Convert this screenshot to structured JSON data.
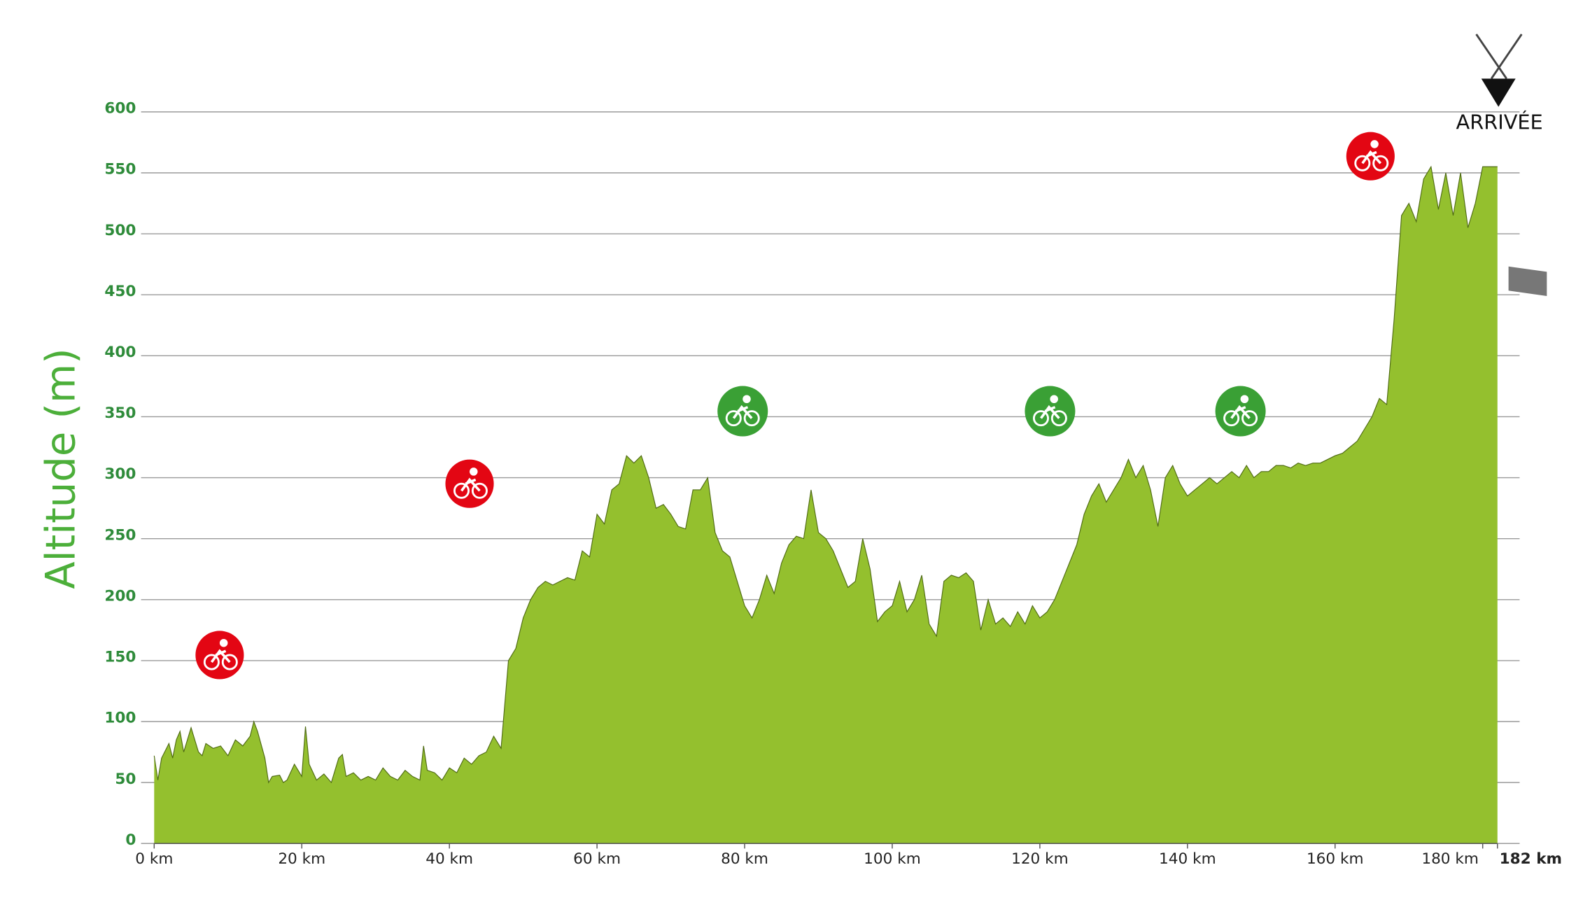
{
  "chart_data": {
    "type": "area",
    "ylabel": "Altitude (m)",
    "annotation": "ARRIVÉE",
    "color": "#94c02e",
    "line_color": "#4f6b14",
    "grid": true,
    "xlim": [
      0,
      182
    ],
    "ylim": [
      0,
      600
    ],
    "yticks": [
      0,
      50,
      100,
      150,
      200,
      250,
      300,
      350,
      400,
      450,
      500,
      550,
      600
    ],
    "xticks": [
      {
        "value": 0,
        "label": "0 km"
      },
      {
        "value": 20,
        "label": "20 km"
      },
      {
        "value": 40,
        "label": "40 km"
      },
      {
        "value": 60,
        "label": "60 km"
      },
      {
        "value": 80,
        "label": "80 km"
      },
      {
        "value": 100,
        "label": "100 km"
      },
      {
        "value": 120,
        "label": "120 km"
      },
      {
        "value": 140,
        "label": "140 km"
      },
      {
        "value": 160,
        "label": "160 km"
      },
      {
        "value": 180,
        "label": "180 km"
      },
      {
        "value": 182,
        "label": "182 km"
      }
    ],
    "x": [
      0,
      0.5,
      1,
      2,
      2.5,
      3,
      3.5,
      4,
      5,
      6,
      6.5,
      7,
      8,
      9,
      10,
      11,
      12,
      13,
      13.5,
      14,
      15,
      15.5,
      16,
      17,
      17.5,
      18,
      19,
      20,
      20.5,
      21,
      22,
      23,
      24,
      25,
      25.5,
      26,
      27,
      28,
      29,
      30,
      31,
      32,
      33,
      34,
      35,
      36,
      36.5,
      37,
      38,
      39,
      40,
      41,
      42,
      43,
      44,
      45,
      46,
      47,
      48,
      49,
      50,
      51,
      52,
      53,
      54,
      55,
      56,
      57,
      58,
      59,
      60,
      61,
      62,
      63,
      64,
      65,
      66,
      67,
      68,
      69,
      70,
      71,
      72,
      73,
      74,
      75,
      76,
      77,
      78,
      79,
      80,
      81,
      82,
      83,
      84,
      85,
      86,
      87,
      88,
      89,
      90,
      91,
      92,
      93,
      94,
      95,
      96,
      97,
      98,
      99,
      100,
      101,
      102,
      103,
      104,
      105,
      106,
      107,
      108,
      109,
      110,
      111,
      112,
      113,
      114,
      115,
      116,
      117,
      118,
      119,
      120,
      121,
      122,
      123,
      124,
      125,
      126,
      127,
      128,
      129,
      130,
      131,
      132,
      133,
      134,
      135,
      136,
      137,
      138,
      139,
      140,
      141,
      142,
      143,
      144,
      145,
      146,
      147,
      148,
      149,
      150,
      151,
      152,
      153,
      154,
      155,
      156,
      157,
      158,
      159,
      160,
      161,
      162,
      163,
      164,
      165,
      166,
      167,
      168,
      169,
      170,
      171,
      172,
      173,
      174,
      175,
      176,
      177,
      178,
      179,
      180,
      181,
      182
    ],
    "values": [
      72,
      52,
      70,
      82,
      70,
      85,
      92,
      75,
      95,
      75,
      72,
      82,
      78,
      80,
      72,
      85,
      80,
      88,
      100,
      92,
      70,
      50,
      55,
      56,
      50,
      52,
      65,
      55,
      96,
      65,
      52,
      57,
      50,
      70,
      73,
      55,
      58,
      52,
      55,
      52,
      62,
      55,
      52,
      60,
      55,
      52,
      80,
      60,
      58,
      52,
      62,
      58,
      70,
      65,
      72,
      75,
      88,
      78,
      150,
      160,
      185,
      200,
      210,
      215,
      212,
      215,
      218,
      216,
      240,
      235,
      270,
      262,
      290,
      295,
      318,
      312,
      318,
      300,
      275,
      278,
      270,
      260,
      258,
      290,
      290,
      300,
      255,
      240,
      235,
      215,
      195,
      185,
      200,
      220,
      205,
      230,
      245,
      252,
      250,
      290,
      255,
      250,
      240,
      225,
      210,
      215,
      250,
      225,
      182,
      190,
      195,
      215,
      190,
      200,
      220,
      180,
      170,
      215,
      220,
      218,
      222,
      215,
      175,
      200,
      180,
      185,
      178,
      190,
      180,
      195,
      185,
      190,
      200,
      215,
      230,
      245,
      270,
      285,
      295,
      280,
      290,
      300,
      315,
      300,
      310,
      290,
      260,
      300,
      310,
      295,
      285,
      290,
      295,
      300,
      295,
      300,
      305,
      300,
      310,
      300,
      305,
      305,
      310,
      310,
      308,
      312,
      310,
      312,
      312,
      315,
      318,
      320,
      325,
      330,
      340,
      350,
      365,
      360,
      430,
      515,
      525,
      510,
      545,
      555,
      520,
      550,
      515,
      550,
      505,
      525,
      555,
      555,
      555
    ]
  }
}
